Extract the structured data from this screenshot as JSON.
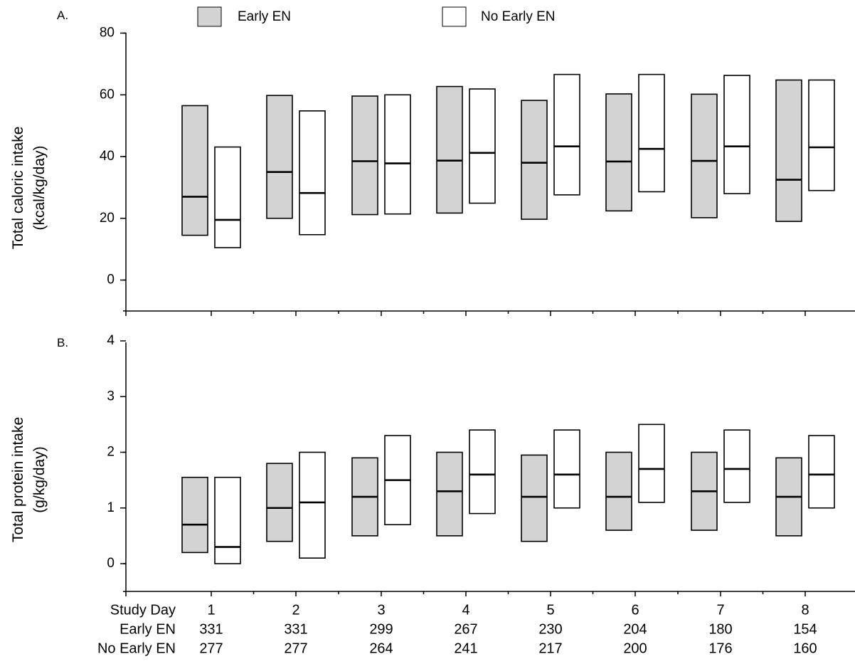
{
  "legend": {
    "early_label": "Early EN",
    "no_early_label": "No Early EN"
  },
  "colors": {
    "early_fill": "#d3d3d3",
    "no_early_fill": "#ffffff",
    "stroke": "#000000"
  },
  "footer": {
    "row_labels": [
      "Study Day",
      "Early EN",
      "No Early EN"
    ],
    "study_day": [
      "1",
      "2",
      "3",
      "4",
      "5",
      "6",
      "7",
      "8"
    ],
    "early_en_n": [
      "331",
      "331",
      "299",
      "267",
      "230",
      "204",
      "180",
      "154"
    ],
    "no_early_en_n": [
      "277",
      "277",
      "264",
      "241",
      "217",
      "200",
      "176",
      "160"
    ]
  },
  "chart_data": [
    {
      "panel": "A.",
      "type": "box",
      "ylabel_line1": "Total caloric intake",
      "ylabel_line2": "(kcal/kg/day)",
      "ylim": [
        -10,
        80
      ],
      "yticks": [
        0,
        20,
        40,
        60,
        80
      ],
      "categories": [
        "1",
        "2",
        "3",
        "4",
        "5",
        "6",
        "7",
        "8"
      ],
      "series": [
        {
          "name": "Early EN",
          "q1": [
            14.5,
            20,
            21.2,
            21.7,
            19.7,
            22.4,
            20.2,
            19
          ],
          "median": [
            27,
            35,
            38.5,
            38.7,
            38,
            38.4,
            38.6,
            32.5
          ],
          "q3": [
            56.5,
            59.8,
            59.6,
            62.7,
            58.2,
            60.3,
            60.2,
            64.8
          ]
        },
        {
          "name": "No Early EN",
          "q1": [
            10.5,
            14.7,
            21.4,
            24.9,
            27.6,
            28.6,
            28,
            29
          ],
          "median": [
            19.5,
            28.2,
            37.8,
            41.2,
            43.3,
            42.5,
            43.3,
            43
          ],
          "q3": [
            43.1,
            54.8,
            60,
            61.9,
            66.6,
            66.6,
            66.3,
            64.8
          ]
        }
      ]
    },
    {
      "panel": "B.",
      "type": "box",
      "ylabel_line1": "Total protein intake",
      "ylabel_line2": "(g/kg/day)",
      "ylim": [
        -0.5,
        4
      ],
      "yticks": [
        0,
        1,
        2,
        3,
        4
      ],
      "categories": [
        "1",
        "2",
        "3",
        "4",
        "5",
        "6",
        "7",
        "8"
      ],
      "series": [
        {
          "name": "Early EN",
          "q1": [
            0.2,
            0.4,
            0.5,
            0.5,
            0.4,
            0.6,
            0.6,
            0.5
          ],
          "median": [
            0.7,
            1.0,
            1.2,
            1.3,
            1.2,
            1.2,
            1.3,
            1.2
          ],
          "q3": [
            1.55,
            1.8,
            1.9,
            2.0,
            1.95,
            2.0,
            2.0,
            1.9
          ]
        },
        {
          "name": "No Early EN",
          "q1": [
            0.0,
            0.1,
            0.7,
            0.9,
            1.0,
            1.1,
            1.1,
            1.0
          ],
          "median": [
            0.3,
            1.1,
            1.5,
            1.6,
            1.6,
            1.7,
            1.7,
            1.6
          ],
          "q3": [
            1.55,
            2.0,
            2.3,
            2.4,
            2.4,
            2.5,
            2.4,
            2.3
          ]
        }
      ]
    }
  ]
}
